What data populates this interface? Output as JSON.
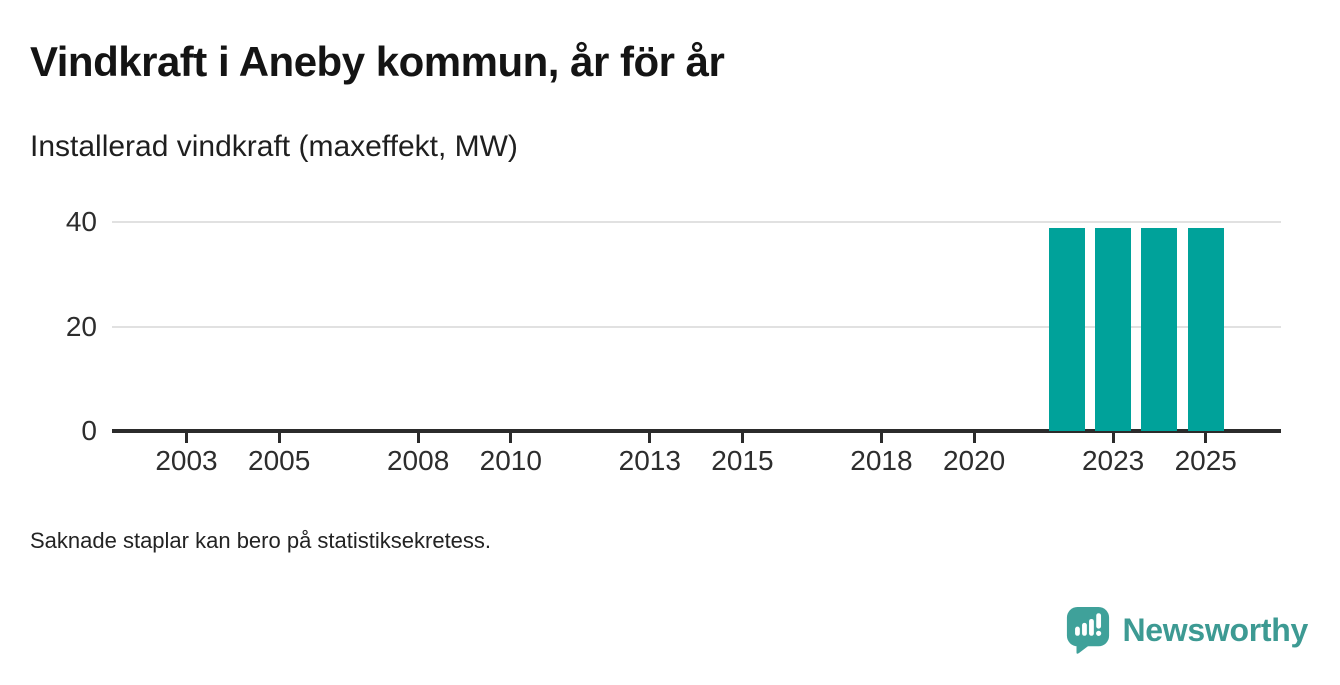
{
  "header": {
    "title": "Vindkraft i Aneby kommun, år för år",
    "subtitle": "Installerad vindkraft (maxeffekt, MW)"
  },
  "footer": {
    "note": "Saknade staplar kan bero på statistiksekretess."
  },
  "branding": {
    "name": "Newsworthy",
    "icon": "speech-bubble-bar-chart-icon",
    "icon_color": "#3fa19a",
    "text_color": "#3d9a93"
  },
  "chart_data": {
    "type": "bar",
    "title": "Vindkraft i Aneby kommun, år för år",
    "subtitle": "Installerad vindkraft (maxeffekt, MW)",
    "xlabel": "",
    "ylabel": "Installerad vindkraft (maxeffekt, MW)",
    "x": [
      2022,
      2023,
      2024,
      2025
    ],
    "values": [
      38.8,
      38.8,
      38.8,
      38.8
    ],
    "bar_color": "#00a29a",
    "x_axis": {
      "range": [
        2001.4,
        2026.6
      ],
      "ticks": [
        2003,
        2005,
        2008,
        2010,
        2013,
        2015,
        2018,
        2020,
        2023,
        2025
      ]
    },
    "y_axis": {
      "range": [
        0,
        42
      ],
      "ticks": [
        0,
        20,
        40
      ]
    },
    "grid": true,
    "legend": false,
    "annotation": "Saknade staplar kan bero på statistiksekretess."
  }
}
